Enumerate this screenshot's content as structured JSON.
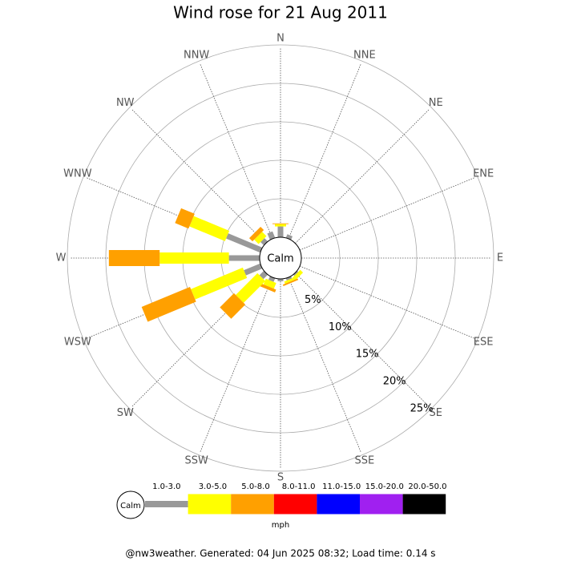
{
  "chart_data": {
    "type": "windrose",
    "title": "Wind rose for 21 Aug 2011",
    "categories": [
      "N",
      "NNE",
      "NE",
      "ENE",
      "E",
      "ESE",
      "SE",
      "SSE",
      "S",
      "SSW",
      "SW",
      "WSW",
      "W",
      "WNW",
      "NW",
      "NNW"
    ],
    "calm_label": "Calm",
    "unit_label": "mph",
    "rlim": [
      0,
      25
    ],
    "rticks": [
      {
        "value": 5,
        "label": "5%"
      },
      {
        "value": 10,
        "label": "10%"
      },
      {
        "value": 15,
        "label": "15%"
      },
      {
        "value": 20,
        "label": "20%"
      },
      {
        "value": 25,
        "label": "25%"
      }
    ],
    "series": [
      {
        "name": "1.0-3.0",
        "color": "#999999",
        "values": [
          1.4,
          0.5,
          0,
          0,
          0,
          0,
          0.2,
          0.3,
          0.3,
          0.5,
          0.8,
          2.3,
          4.0,
          4.8,
          0.6,
          0.9
        ]
      },
      {
        "name": "3.0-5.0",
        "color": "#ffff00",
        "values": [
          0.3,
          0,
          0,
          0,
          0,
          0,
          0.5,
          0.3,
          0,
          0.8,
          4.0,
          7.3,
          9.0,
          5.0,
          0.8,
          0
        ]
      },
      {
        "name": "5.0-8.0",
        "color": "#ffa000",
        "values": [
          0.1,
          0,
          0,
          0,
          0,
          0,
          0,
          0.2,
          0,
          0.4,
          2.6,
          6.8,
          6.6,
          1.9,
          0.6,
          0
        ]
      },
      {
        "name": "8.0-11.0",
        "color": "#ff0000",
        "values": [
          0,
          0,
          0,
          0,
          0,
          0,
          0,
          0,
          0,
          0,
          0,
          0,
          0,
          0,
          0,
          0
        ]
      },
      {
        "name": "11.0-15.0",
        "color": "#0000ff",
        "values": [
          0,
          0,
          0,
          0,
          0,
          0,
          0,
          0,
          0,
          0,
          0,
          0,
          0,
          0,
          0,
          0
        ]
      },
      {
        "name": "15.0-20.0",
        "color": "#a020f0",
        "values": [
          0,
          0,
          0,
          0,
          0,
          0,
          0,
          0,
          0,
          0,
          0,
          0,
          0,
          0,
          0,
          0
        ]
      },
      {
        "name": "20.0-50.0",
        "color": "#000000",
        "values": [
          0,
          0,
          0,
          0,
          0,
          0,
          0,
          0,
          0,
          0,
          0,
          0,
          0,
          0,
          0,
          0
        ]
      }
    ],
    "footer": "@nw3weather. Generated: 04 Jun 2025 08:32; Load time: 0.14 s"
  }
}
